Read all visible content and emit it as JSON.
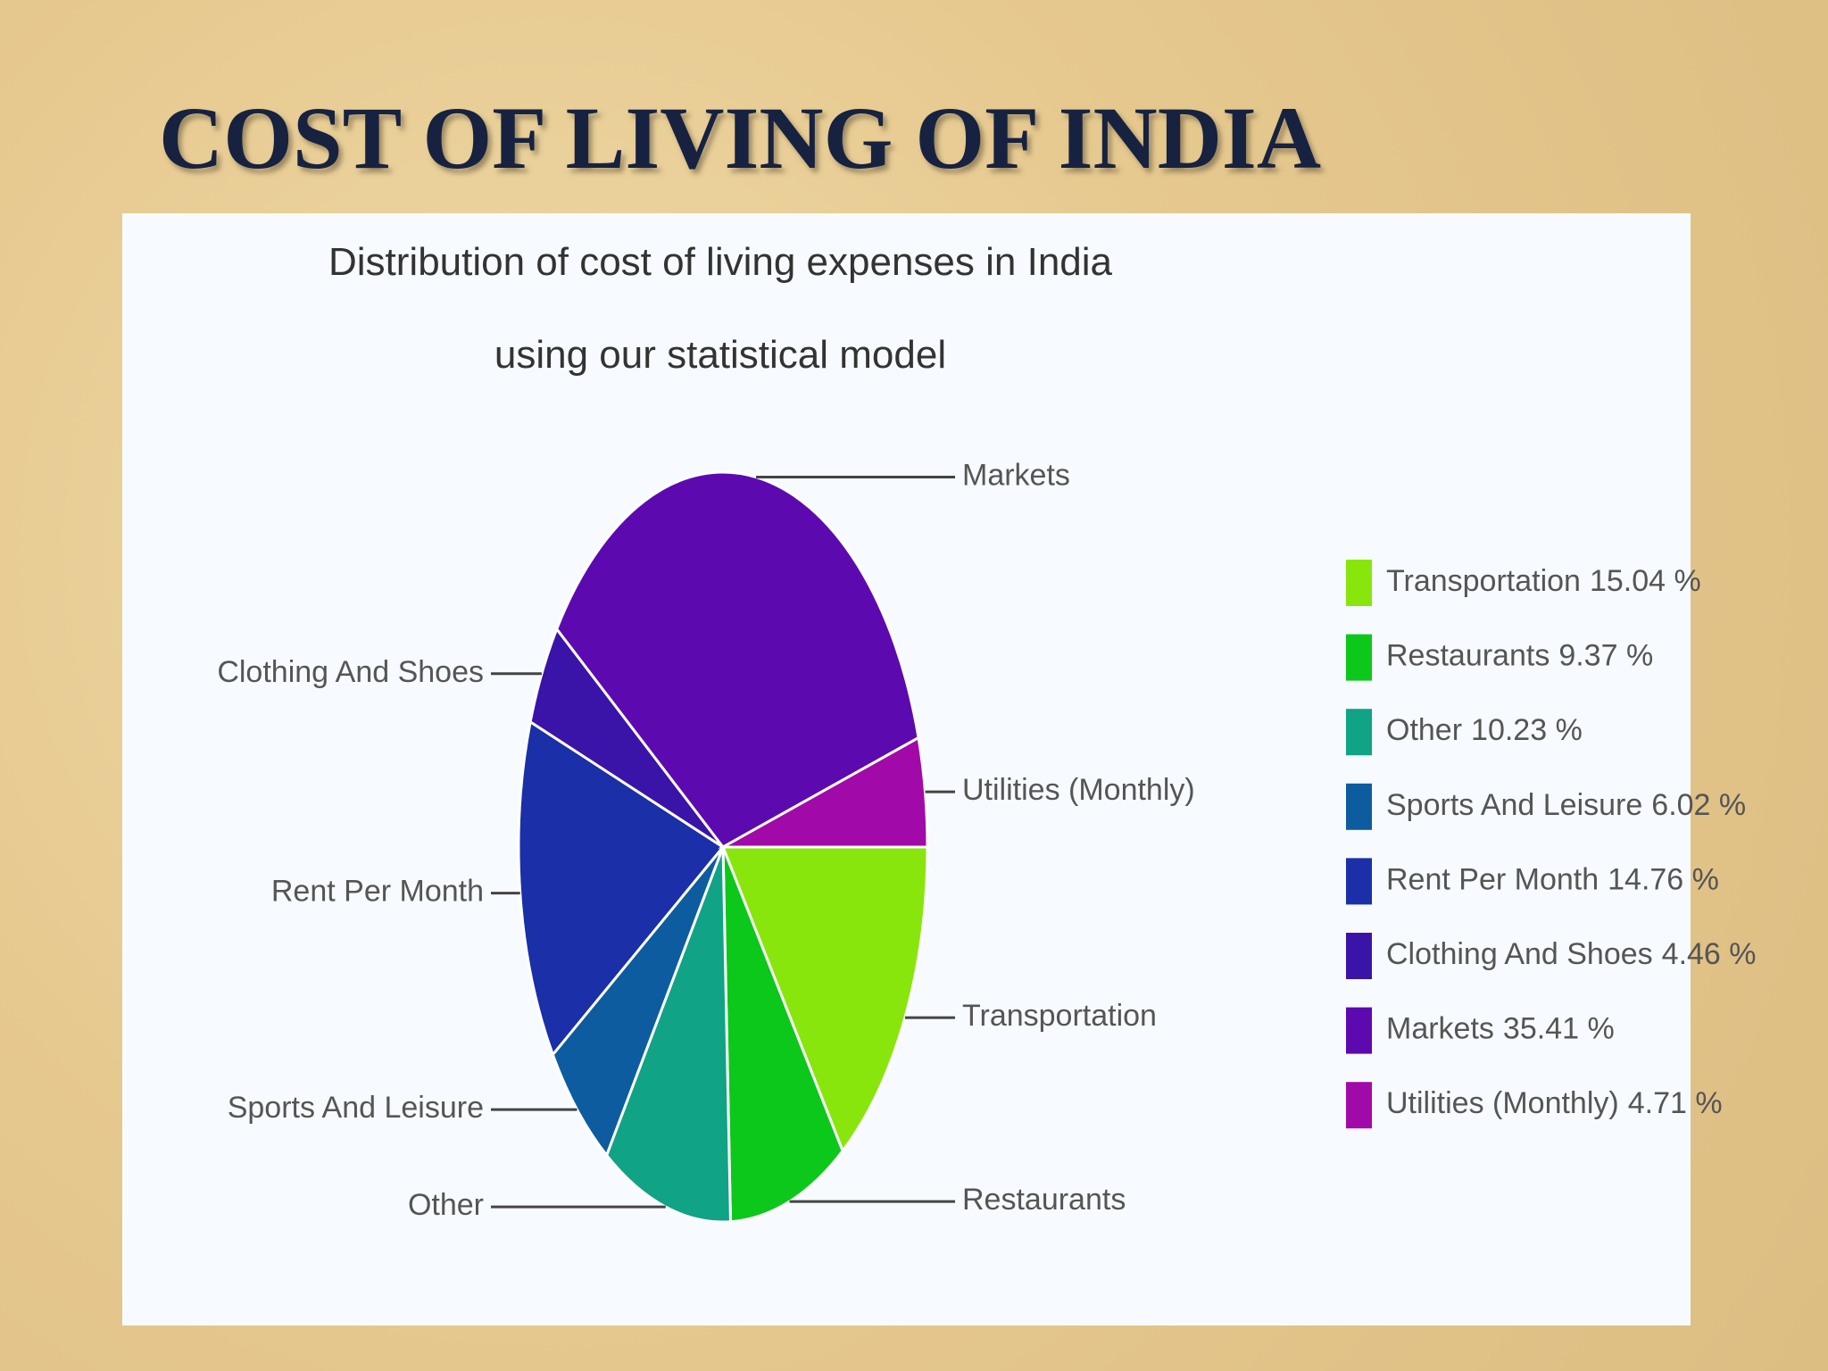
{
  "slide_title": "COST OF LIVING OF INDIA",
  "chart_data": {
    "type": "pie",
    "title": "Distribution of cost of living expenses in India",
    "subtitle": "using our statistical model",
    "categories": [
      "Transportation",
      "Restaurants",
      "Other",
      "Sports And Leisure",
      "Rent Per Month",
      "Clothing And Shoes",
      "Markets",
      "Utilities (Monthly)"
    ],
    "values": [
      15.04,
      9.37,
      10.23,
      6.02,
      14.76,
      4.46,
      35.41,
      4.71
    ],
    "value_labels": [
      "15.04 %",
      "9.37 %",
      "10.23 %",
      "6.02 %",
      "14.76 %",
      "4.46 %",
      "35.41 %",
      "4.71 %"
    ],
    "colors": [
      "#88e60c",
      "#0cc81a",
      "#10a386",
      "#0d5ca0",
      "#1a2fa8",
      "#3a14a8",
      "#5c0aaf",
      "#a10aa8"
    ],
    "legend": "right"
  }
}
